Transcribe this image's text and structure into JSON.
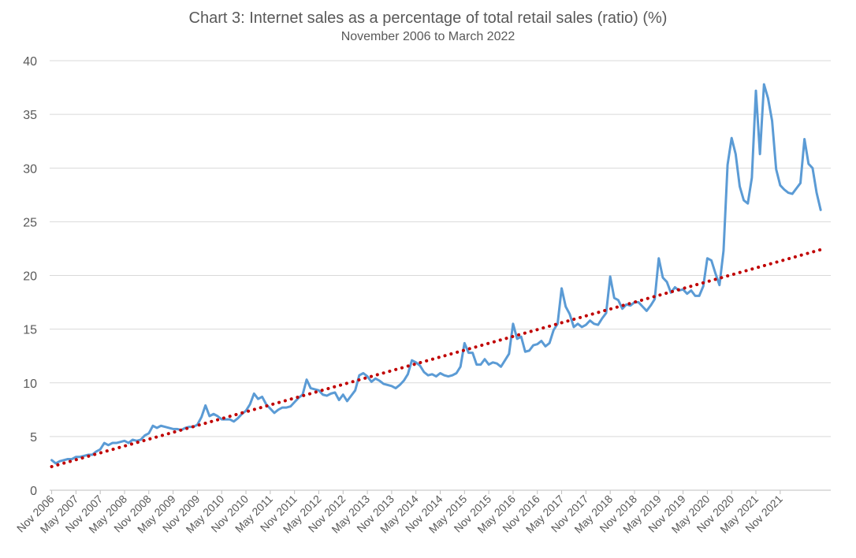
{
  "chart_data": {
    "type": "line",
    "title": "Chart 3: Internet sales as a percentage of total retail sales (ratio) (%)",
    "subtitle": "November 2006 to March 2022",
    "xlabel": "",
    "ylabel": "",
    "ylim": [
      0,
      40
    ],
    "y_ticks": [
      0,
      5,
      10,
      15,
      20,
      25,
      30,
      35,
      40
    ],
    "grid": "horizontal",
    "legend": "none",
    "x_tick_labels": [
      "Nov 2006",
      "May 2007",
      "Nov 2007",
      "May 2008",
      "Nov 2008",
      "May 2009",
      "Nov 2009",
      "May 2010",
      "Nov 2010",
      "May 2011",
      "Nov 2011",
      "May 2012",
      "Nov 2012",
      "May 2013",
      "Nov 2013",
      "May 2014",
      "Nov 2014",
      "May 2015",
      "Nov 2015",
      "May 2016",
      "Nov 2016",
      "May 2017",
      "Nov 2017",
      "May 2018",
      "Nov 2018",
      "May 2019",
      "Nov 2019",
      "May 2020",
      "Nov 2020",
      "May 2021",
      "Nov 2021"
    ],
    "series": [
      {
        "color": "#5b9bd5",
        "style": "solid",
        "values": [
          2.8,
          2.5,
          2.7,
          2.8,
          2.9,
          2.9,
          3.1,
          3.1,
          3.2,
          3.3,
          3.3,
          3.6,
          3.8,
          4.4,
          4.2,
          4.4,
          4.4,
          4.5,
          4.6,
          4.4,
          4.7,
          4.6,
          4.7,
          5.1,
          5.3,
          6.0,
          5.8,
          6.0,
          5.9,
          5.8,
          5.7,
          5.7,
          5.6,
          5.8,
          5.9,
          5.9,
          6.1,
          6.8,
          7.9,
          6.9,
          7.1,
          6.9,
          6.6,
          6.6,
          6.6,
          6.4,
          6.7,
          7.1,
          7.4,
          8.0,
          9.0,
          8.5,
          8.7,
          8.0,
          7.6,
          7.2,
          7.5,
          7.7,
          7.7,
          7.8,
          8.2,
          8.6,
          8.9,
          10.3,
          9.5,
          9.4,
          9.3,
          8.9,
          8.8,
          9.0,
          9.1,
          8.4,
          8.9,
          8.3,
          8.8,
          9.3,
          10.7,
          10.9,
          10.6,
          10.1,
          10.4,
          10.2,
          9.9,
          9.8,
          9.7,
          9.5,
          9.8,
          10.2,
          10.8,
          12.1,
          11.9,
          11.6,
          11.0,
          10.7,
          10.8,
          10.6,
          10.9,
          10.7,
          10.6,
          10.7,
          10.9,
          11.5,
          13.7,
          12.8,
          12.8,
          11.7,
          11.7,
          12.2,
          11.7,
          11.9,
          11.8,
          11.5,
          12.1,
          12.7,
          15.5,
          14.1,
          14.3,
          12.9,
          13.0,
          13.5,
          13.6,
          13.9,
          13.4,
          13.7,
          14.9,
          15.5,
          18.8,
          17.1,
          16.4,
          15.2,
          15.5,
          15.2,
          15.4,
          15.8,
          15.5,
          15.4,
          16.0,
          16.5,
          19.9,
          17.9,
          17.7,
          16.9,
          17.3,
          17.2,
          17.5,
          17.5,
          17.1,
          16.7,
          17.2,
          17.8,
          21.6,
          19.8,
          19.4,
          18.4,
          18.9,
          18.6,
          18.7,
          18.3,
          18.6,
          18.1,
          18.1,
          19.0,
          21.6,
          21.4,
          20.2,
          19.1,
          22.3,
          30.3,
          32.8,
          31.3,
          28.3,
          27.0,
          26.7,
          29.1,
          37.2,
          31.3,
          37.8,
          36.5,
          34.4,
          29.9,
          28.4,
          28.0,
          27.7,
          27.6,
          28.1,
          28.6,
          32.7,
          30.4,
          30.0,
          27.7,
          26.1
        ]
      },
      {
        "color": "#c00000",
        "style": "dotted",
        "values": [
          2.2,
          22.4
        ]
      }
    ]
  }
}
